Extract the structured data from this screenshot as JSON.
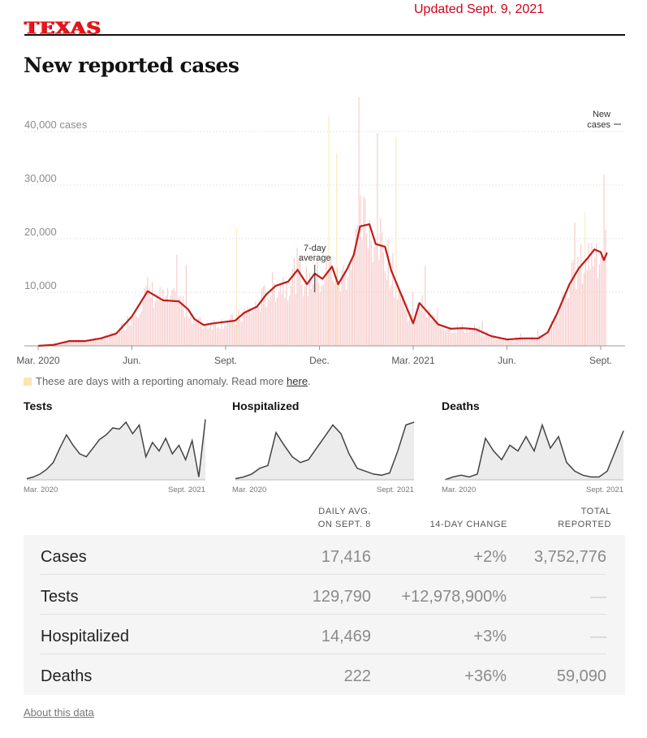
{
  "header": {
    "logo_text": "TEXAS",
    "updated": "Updated Sept. 9, 2021",
    "title": "New reported cases"
  },
  "colors": {
    "accent_red": "#d0021b",
    "bar_pink": "#f7c9c9",
    "anomaly": "#fbe5b0",
    "mini_line": "#444444",
    "mini_fill": "#ececec"
  },
  "anomaly_note": {
    "text": "These are days with a reporting anomaly. Read more ",
    "link": "here",
    "suffix": "."
  },
  "chart_data": {
    "type": "line",
    "ylim": [
      0,
      42000
    ],
    "y_ticks": [
      {
        "value": 10000,
        "label": "10,000"
      },
      {
        "value": 20000,
        "label": "20,000"
      },
      {
        "value": 30000,
        "label": "30,000"
      },
      {
        "value": 40000,
        "label": "40,000 cases"
      }
    ],
    "x_ticks": [
      "Mar. 2020",
      "Jun.",
      "Sept.",
      "Dec.",
      "Mar. 2021",
      "Jun.",
      "Sept."
    ],
    "x_tick_months": [
      0,
      3,
      6,
      9,
      12,
      15,
      18
    ],
    "annotations": [
      {
        "text": [
          "7-day",
          "average"
        ],
        "month": 8.85,
        "value": 14800
      },
      {
        "text": [
          "New",
          "cases"
        ],
        "month": 18.2,
        "value": 43000
      }
    ],
    "series": [
      {
        "label_role": "7-day average",
        "color": "#c11b17",
        "x_month": [
          0,
          0.5,
          1,
          1.5,
          2,
          2.5,
          3,
          3.5,
          4,
          4.5,
          4.8,
          5,
          5.3,
          5.6,
          6,
          6.3,
          6.6,
          7,
          7.3,
          7.6,
          8,
          8.3,
          8.6,
          8.85,
          9.1,
          9.4,
          9.6,
          9.9,
          10.1,
          10.3,
          10.6,
          10.8,
          11.1,
          11.3,
          11.6,
          12,
          12.2,
          12.5,
          12.8,
          13.2,
          13.6,
          14,
          14.5,
          15,
          15.5,
          16,
          16.3,
          16.6,
          17,
          17.3,
          17.6,
          17.8,
          18.0,
          18.1,
          18.2
        ],
        "values": [
          0,
          200,
          900,
          900,
          1400,
          2300,
          5500,
          10200,
          8500,
          8300,
          6800,
          5000,
          3900,
          4200,
          4500,
          4700,
          6200,
          7300,
          9600,
          11200,
          12000,
          14200,
          11500,
          13500,
          12500,
          14800,
          11500,
          14500,
          17000,
          22300,
          22700,
          19000,
          18500,
          14000,
          9800,
          4200,
          8000,
          6000,
          4000,
          3200,
          3300,
          3100,
          1800,
          1200,
          1400,
          1400,
          2500,
          6000,
          11500,
          14500,
          16500,
          18000,
          17500,
          16000,
          17400
        ]
      }
    ],
    "daily_bar_note": "New cases (daily bars)"
  },
  "mini_charts": [
    {
      "title": "Tests",
      "start": "Mar. 2020",
      "end": "Sept. 2021",
      "values": [
        0.02,
        0.05,
        0.1,
        0.18,
        0.3,
        0.55,
        0.78,
        0.6,
        0.45,
        0.4,
        0.55,
        0.7,
        0.78,
        0.9,
        0.88,
        1.0,
        0.8,
        0.95,
        0.4,
        0.65,
        0.5,
        0.72,
        0.45,
        0.6,
        0.35,
        0.68,
        0.05,
        1.05
      ]
    },
    {
      "title": "Hospitalized",
      "start": "Mar. 2020",
      "end": "Sept. 2021",
      "values": [
        0.02,
        0.05,
        0.1,
        0.2,
        0.25,
        0.82,
        0.6,
        0.4,
        0.3,
        0.35,
        0.55,
        0.75,
        0.95,
        0.8,
        0.45,
        0.2,
        0.15,
        0.1,
        0.08,
        0.12,
        0.5,
        0.95,
        1.0
      ]
    },
    {
      "title": "Deaths",
      "start": "Mar. 2020",
      "end": "Sept. 2021",
      "values": [
        0.0,
        0.05,
        0.08,
        0.05,
        0.1,
        0.72,
        0.5,
        0.35,
        0.6,
        0.5,
        0.75,
        0.5,
        0.95,
        0.55,
        0.75,
        0.3,
        0.15,
        0.08,
        0.05,
        0.05,
        0.15,
        0.5,
        0.85
      ]
    }
  ],
  "table": {
    "headers": {
      "avg_line1": "DAILY AVG.",
      "avg_line2": "ON SEPT. 8",
      "change": "14-DAY CHANGE",
      "total_line1": "TOTAL",
      "total_line2": "REPORTED"
    },
    "rows": [
      {
        "name": "Cases",
        "avg": "17,416",
        "change": "+2%",
        "total": "3,752,776"
      },
      {
        "name": "Tests",
        "avg": "129,790",
        "change": "+12,978,900%",
        "total": "—"
      },
      {
        "name": "Hospitalized",
        "avg": "14,469",
        "change": "+3%",
        "total": "—"
      },
      {
        "name": "Deaths",
        "avg": "222",
        "change": "+36%",
        "total": "59,090"
      }
    ]
  },
  "footer": {
    "about": "About this data"
  }
}
